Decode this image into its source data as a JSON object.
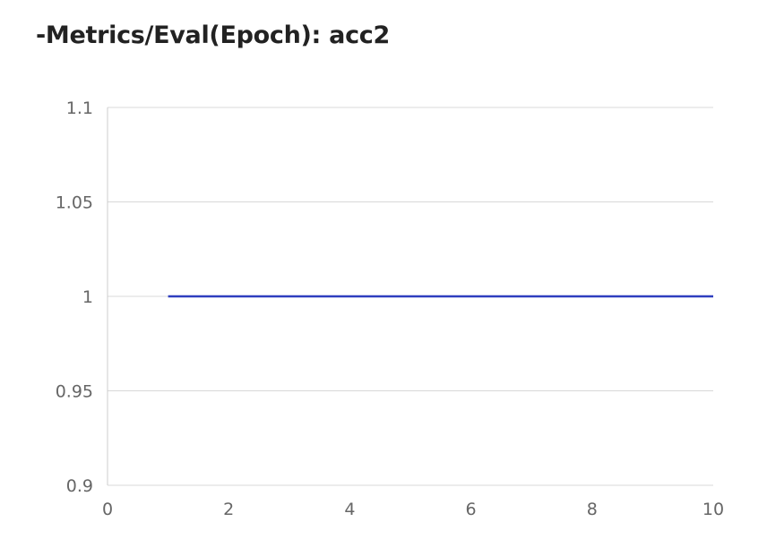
{
  "chart_data": {
    "type": "line",
    "title": "-Metrics/Eval(Epoch): acc2",
    "xlabel": "",
    "ylabel": "",
    "xlim": [
      0,
      10
    ],
    "ylim": [
      0.9,
      1.1
    ],
    "x_ticks": [
      "0",
      "2",
      "4",
      "6",
      "8",
      "10"
    ],
    "y_ticks": [
      "0.9",
      "0.95",
      "1",
      "1.05",
      "1.1"
    ],
    "grid": "horizontal",
    "legend": "none",
    "series": [
      {
        "color": "#2f3fbf",
        "x": [
          1,
          2,
          3,
          4,
          5,
          6,
          7,
          8,
          9,
          10
        ],
        "y": [
          1,
          1,
          1,
          1,
          1,
          1,
          1,
          1,
          1,
          1
        ]
      }
    ]
  }
}
